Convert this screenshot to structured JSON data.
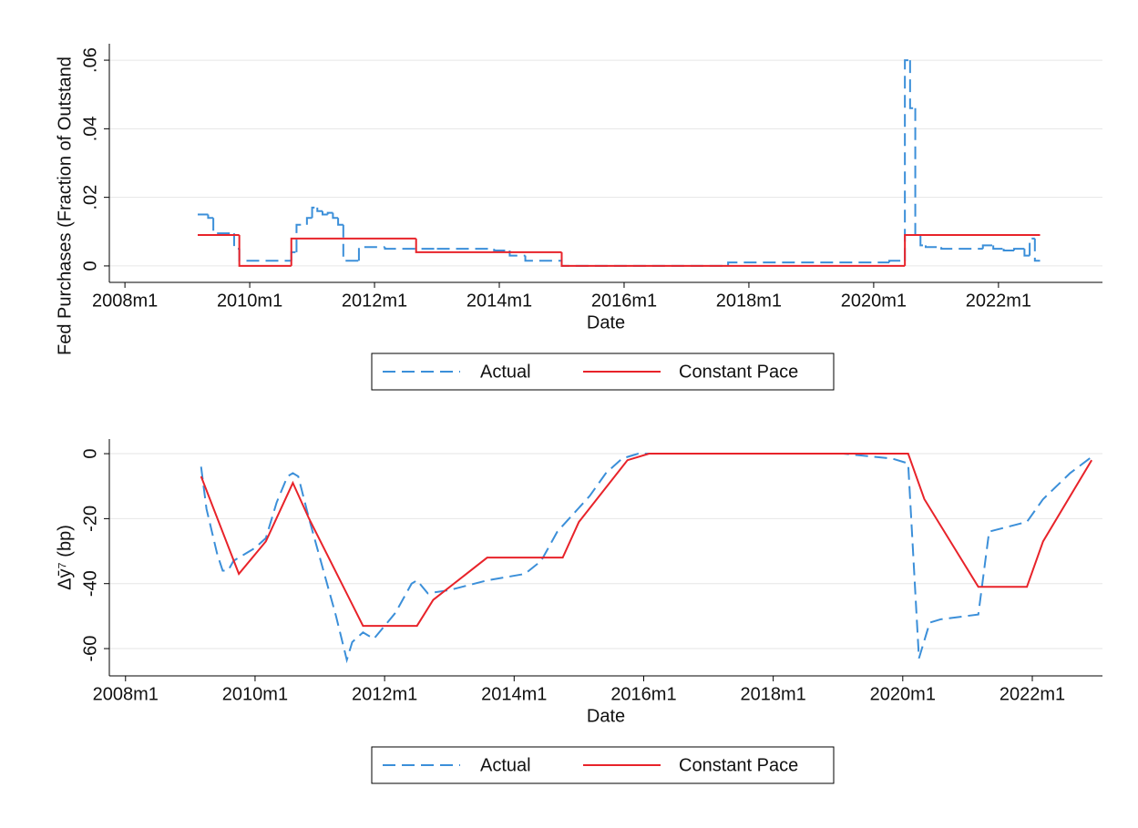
{
  "chart_data": [
    {
      "type": "line",
      "drawstyle": "steps-post",
      "ylabel": "Fed Purchases (Fraction of Outstand",
      "xlabel": "Date",
      "xlim": [
        "2007m10",
        "2023m9"
      ],
      "xticks": [
        "2008m1",
        "2010m1",
        "2012m1",
        "2014m1",
        "2016m1",
        "2018m1",
        "2020m1",
        "2022m1"
      ],
      "ylim": [
        -0.0048,
        0.0648
      ],
      "yticks": [
        0,
        {
          "value": 0.02,
          "label": ".02"
        },
        {
          "value": 0.04,
          "label": ".04"
        },
        {
          "value": 0.06,
          "label": ".06"
        }
      ],
      "grid": true,
      "legend": "bottom",
      "series": [
        {
          "name": "Actual",
          "color": "#3b8fd9",
          "dashed": true,
          "x": [
            "2009m3",
            "2009m5",
            "2009m6",
            "2009m10",
            "2009m11",
            "2010m9",
            "2010m10",
            "2010m12",
            "2011m1",
            "2011m2",
            "2011m3",
            "2011m4",
            "2011m5",
            "2011m6",
            "2011m7",
            "2011m10",
            "2012m3",
            "2013m1",
            "2013m12",
            "2014m3",
            "2014m6",
            "2015m1",
            "2017m9",
            "2020m4",
            "2020m7",
            "2020m8",
            "2020m9",
            "2020m10",
            "2020m11",
            "2021m2",
            "2021m10",
            "2021m12",
            "2022m2",
            "2022m4",
            "2022m6",
            "2022m7",
            "2022m8",
            "2022m9"
          ],
          "values": [
            0.015,
            0.014,
            0.0095,
            0.005,
            0.0015,
            0.004,
            0.012,
            0.014,
            0.017,
            0.016,
            0.015,
            0.0155,
            0.014,
            0.012,
            0.0015,
            0.0055,
            0.005,
            0.005,
            0.0045,
            0.003,
            0.0015,
            0,
            0.001,
            0.0015,
            0.06,
            0.046,
            0.009,
            0.006,
            0.0055,
            0.005,
            0.006,
            0.005,
            0.0045,
            0.005,
            0.003,
            0.008,
            0.0015,
            0.0015
          ]
        },
        {
          "name": "Constant Pace",
          "color": "#e8232a",
          "dashed": false,
          "x": [
            "2009m3",
            "2009m11",
            "2010m9",
            "2012m9",
            "2015m1",
            "2020m7",
            "2022m9"
          ],
          "values": [
            0.009,
            0,
            0.008,
            0.004,
            0,
            0.009,
            0.009
          ]
        }
      ]
    },
    {
      "type": "line",
      "drawstyle": "default",
      "ylabel": "Δȳ⁷ (bp)",
      "xlabel": "Date",
      "xlim": [
        "2007m10",
        "2023m2"
      ],
      "xticks": [
        "2008m1",
        "2010m1",
        "2012m1",
        "2014m1",
        "2016m1",
        "2018m1",
        "2020m1",
        "2022m1"
      ],
      "ylim": [
        -68.4,
        4.5
      ],
      "yticks": [
        -60,
        -40,
        -20,
        0
      ],
      "grid": true,
      "legend": "bottom",
      "series": [
        {
          "name": "Actual",
          "color": "#3b8fd9",
          "dashed": true,
          "x": [
            "2009m3",
            "2009m4",
            "2009m6",
            "2009m7",
            "2009m8",
            "2009m9",
            "2009m11",
            "2010m1",
            "2010m3",
            "2010m5",
            "2010m7",
            "2010m8",
            "2010m9",
            "2010m11",
            "2011m2",
            "2011m4",
            "2011m6",
            "2011m7",
            "2011m9",
            "2011m11",
            "2012m3",
            "2012m6",
            "2012m7",
            "2012m9",
            "2013m1",
            "2013m8",
            "2014m3",
            "2014m6",
            "2014m9",
            "2015m3",
            "2015m6",
            "2015m9",
            "2015m12",
            "2019m2",
            "2019m11",
            "2020m2",
            "2020m4",
            "2020m6",
            "2020m8",
            "2021m3",
            "2021m5",
            "2021m12",
            "2022m3",
            "2022m8",
            "2022m12"
          ],
          "values": [
            -4,
            -17,
            -31,
            -36,
            -36,
            -33,
            -31,
            -29,
            -26,
            -15,
            -7,
            -6,
            -7,
            -20,
            -38,
            -50,
            -63.5,
            -58,
            -55,
            -57,
            -49,
            -40,
            -39,
            -43,
            -42,
            -39,
            -37,
            -33,
            -24,
            -13,
            -6,
            -1.5,
            0,
            0,
            -1.5,
            -3,
            -63,
            -52,
            -51,
            -49.5,
            -24,
            -21,
            -14,
            -6,
            -1
          ]
        },
        {
          "name": "Constant Pace",
          "color": "#e8232a",
          "dashed": false,
          "x": [
            "2009m3",
            "2009m10",
            "2010m3",
            "2010m8",
            "2010m11",
            "2011m9",
            "2012m7",
            "2012m10",
            "2013m8",
            "2014m10",
            "2015m1",
            "2015m10",
            "2016m2",
            "2020m2",
            "2020m5",
            "2021m3",
            "2021m12",
            "2022m3",
            "2022m12"
          ],
          "values": [
            -7,
            -37,
            -27,
            -9,
            -20,
            -53,
            -53,
            -45,
            -32,
            -32,
            -21,
            -2,
            0,
            0,
            -14,
            -41,
            -41,
            -27,
            -2
          ]
        }
      ]
    }
  ]
}
